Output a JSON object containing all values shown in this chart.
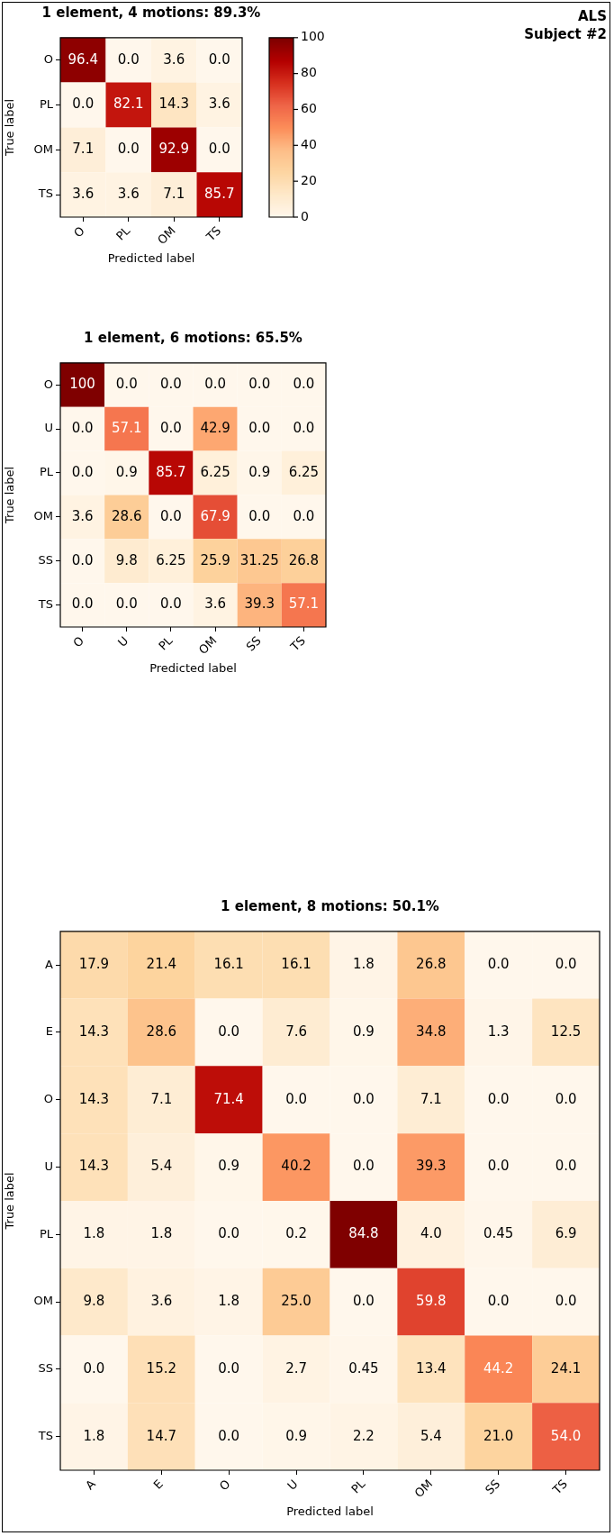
{
  "chart_data": [
    {
      "type": "heatmap",
      "title": "1 element, 4 motions: 89.3%",
      "xlabel": "Predicted label",
      "ylabel": "True label",
      "annotations": [
        "ALS\nSubject #2"
      ],
      "categories": [
        "O",
        "PL",
        "OM",
        "TS"
      ],
      "y_categories": [
        "O",
        "PL",
        "OM",
        "TS"
      ],
      "cells": [
        [
          96.4,
          0,
          3.6,
          0
        ],
        [
          0,
          82.1,
          14.3,
          3.6
        ],
        [
          7.1,
          0,
          92.9,
          0
        ],
        [
          3.6,
          3.6,
          7.1,
          85.7
        ]
      ],
      "cell_labels": [
        [
          "96.4",
          "0.0",
          "3.6",
          "0.0"
        ],
        [
          "0.0",
          "82.1",
          "14.3",
          "3.6"
        ],
        [
          "7.1",
          "0.0",
          "92.9",
          "0.0"
        ],
        [
          "3.6",
          "3.6",
          "7.1",
          "85.7"
        ]
      ],
      "clim": [
        0,
        100
      ],
      "cticks": [
        0,
        20,
        40,
        60,
        80,
        100
      ]
    },
    {
      "type": "heatmap",
      "title": "1 element, 6 motions: 65.5%",
      "xlabel": "Predicted label",
      "ylabel": "True label",
      "categories": [
        "O",
        "U",
        "PL",
        "OM",
        "SS",
        "TS"
      ],
      "y_categories": [
        "O",
        "U",
        "PL",
        "OM",
        "SS",
        "TS"
      ],
      "cells": [
        [
          100,
          0,
          0,
          0,
          0,
          0
        ],
        [
          0,
          57.1,
          0,
          42.9,
          0,
          0
        ],
        [
          0,
          0.9,
          85.7,
          6.25,
          0.9,
          6.25
        ],
        [
          3.6,
          28.6,
          0,
          67.9,
          0,
          0
        ],
        [
          0,
          9.8,
          6.25,
          25.9,
          31.25,
          26.8
        ],
        [
          0,
          0,
          0,
          3.6,
          39.3,
          57.1
        ]
      ],
      "cell_labels": [
        [
          "100",
          "0.0",
          "0.0",
          "0.0",
          "0.0",
          "0.0"
        ],
        [
          "0.0",
          "57.1",
          "0.0",
          "42.9",
          "0.0",
          "0.0"
        ],
        [
          "0.0",
          "0.9",
          "85.7",
          "6.25",
          "0.9",
          "6.25"
        ],
        [
          "3.6",
          "28.6",
          "0.0",
          "67.9",
          "0.0",
          "0.0"
        ],
        [
          "0.0",
          "9.8",
          "6.25",
          "25.9",
          "31.25",
          "26.8"
        ],
        [
          "0.0",
          "0.0",
          "0.0",
          "3.6",
          "39.3",
          "57.1"
        ]
      ]
    },
    {
      "type": "heatmap",
      "title": "1 element, 8 motions: 50.1%",
      "xlabel": "Predicted label",
      "ylabel": "True label",
      "categories": [
        "A",
        "E",
        "O",
        "U",
        "PL",
        "OM",
        "SS",
        "TS"
      ],
      "y_categories": [
        "A",
        "E",
        "O",
        "U",
        "PL",
        "OM",
        "SS",
        "TS"
      ],
      "cells": [
        [
          17.9,
          21.4,
          16.1,
          16.1,
          1.8,
          26.8,
          0,
          0
        ],
        [
          14.3,
          28.6,
          0,
          7.6,
          0.9,
          34.8,
          1.3,
          12.5
        ],
        [
          14.3,
          7.1,
          71.4,
          0,
          0,
          7.1,
          0,
          0
        ],
        [
          14.3,
          5.4,
          0.9,
          40.2,
          0,
          39.3,
          0,
          0
        ],
        [
          1.8,
          1.8,
          0,
          0.2,
          84.8,
          4.0,
          0.45,
          6.9
        ],
        [
          9.8,
          3.6,
          1.8,
          25.0,
          0,
          59.8,
          0,
          0
        ],
        [
          0,
          15.2,
          0,
          2.7,
          0.45,
          13.4,
          44.2,
          24.1
        ],
        [
          1.8,
          14.7,
          0,
          0.9,
          2.2,
          5.4,
          21.0,
          54.0
        ]
      ],
      "cell_labels": [
        [
          "17.9",
          "21.4",
          "16.1",
          "16.1",
          "1.8",
          "26.8",
          "0.0",
          "0.0"
        ],
        [
          "14.3",
          "28.6",
          "0.0",
          "7.6",
          "0.9",
          "34.8",
          "1.3",
          "12.5"
        ],
        [
          "14.3",
          "7.1",
          "71.4",
          "0.0",
          "0.0",
          "7.1",
          "0.0",
          "0.0"
        ],
        [
          "14.3",
          "5.4",
          "0.9",
          "40.2",
          "0.0",
          "39.3",
          "0.0",
          "0.0"
        ],
        [
          "1.8",
          "1.8",
          "0.0",
          "0.2",
          "84.8",
          "4.0",
          "0.45",
          "6.9"
        ],
        [
          "9.8",
          "3.6",
          "1.8",
          "25.0",
          "0.0",
          "59.8",
          "0.0",
          "0.0"
        ],
        [
          "0.0",
          "15.2",
          "0.0",
          "2.7",
          "0.45",
          "13.4",
          "44.2",
          "24.1"
        ],
        [
          "1.8",
          "14.7",
          "0.0",
          "0.9",
          "2.2",
          "5.4",
          "21.0",
          "54.0"
        ]
      ]
    }
  ]
}
